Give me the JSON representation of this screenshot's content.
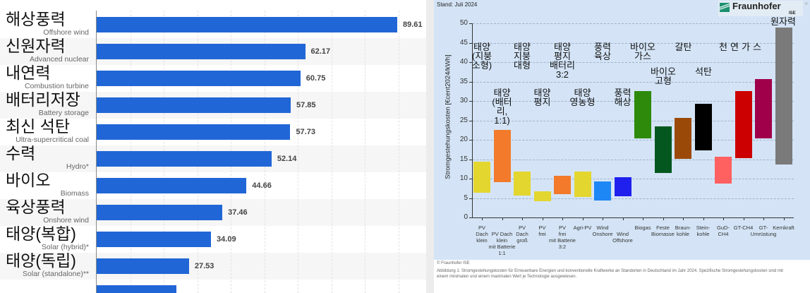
{
  "left_overlay_labels": [
    "해상풍력",
    "신원자력",
    "내연력",
    "배터리저장",
    "최신 석탄",
    "수력",
    "바이오",
    "육상풍력",
    "태양(복합)",
    "태양(독립)"
  ],
  "right_overlay_labels": [
    "태양\n(지붕\n소형)",
    "태양\n(배터\n리,\n1:1)",
    "태양\n지붕\n대형",
    "태양\n평지",
    "태양\n평지\n배터리\n3:2",
    "태양\n영농형",
    "풍력\n육상",
    "풍력\n해상",
    "바이오\n가스",
    "바이오\n고형",
    "갈탄",
    "석탄",
    "천",
    "연",
    "가",
    "스",
    "원자력"
  ],
  "right_header": {
    "stand": "Stand: Juli 2024",
    "logo": "Fraunhofer",
    "logo_sub": "ISE",
    "close": "×"
  },
  "right_footer": {
    "copyright": "© Fraunhofer ISE",
    "caption": "Abbildung 1: Stromgestehungskosten für Erneuerbare Energien und konventionelle Kraftwerke an Standorten in Deutschland im Jahr 2024. Spezifische Stromgestehungskosten sind mit einem minimalen und einem maximalen Wert je Technologie ausgewiesen."
  },
  "chart_data": [
    {
      "type": "bar",
      "orientation": "horizontal",
      "title": "",
      "xlabel": "",
      "ylabel": "",
      "xlim": [
        0,
        90
      ],
      "categories": [
        "Offshore wind",
        "Advanced nuclear",
        "Combustion turbine",
        "Battery storage",
        "Ultra-supercritical coal",
        "Hydro*",
        "Biomass",
        "Onshore wind",
        "Solar (hybrid)*",
        "Solar (standalone)**",
        ""
      ],
      "values": [
        89.61,
        62.17,
        60.75,
        57.85,
        57.73,
        52.14,
        44.66,
        37.46,
        34.09,
        27.53,
        23.8
      ],
      "labels": [
        "89.61",
        "62.17",
        "60.75",
        "57.85",
        "57.73",
        "52.14",
        "44.66",
        "37.46",
        "34.09",
        "27.53",
        ""
      ],
      "color": "#2166d6"
    },
    {
      "type": "bar",
      "subtype": "floating-range",
      "title": "",
      "ylabel": "Stromgestehungskosten [€cent2024/kWh]",
      "ylim": [
        0,
        50
      ],
      "yticks": [
        "0",
        "5",
        "10",
        "15",
        "20",
        "25",
        "30",
        "35",
        "40",
        "45",
        "50"
      ],
      "grid": true,
      "categories": [
        "PV\nDach\nklein",
        "PV Dach\nklein\nmit Batterie\n1:1",
        "PV\nDach\ngroß",
        "PV\nfrei",
        "PV\nfrei\nmit Batterie\n3:2",
        "Agri-PV",
        "Wind\nOnshore",
        "Wind\nOffshore",
        "Biogas",
        "Feste\nBiomasse",
        "Braun-\nkohle",
        "Stein-\nkohle",
        "GuD-\nCH4",
        "GT-CH4",
        "GT-\nUmrüstung",
        "Kernkraft"
      ],
      "min": [
        6.3,
        9.1,
        5.7,
        4.1,
        6.0,
        5.2,
        4.3,
        5.5,
        20.3,
        11.4,
        15.1,
        17.3,
        8.7,
        15.3,
        20.3,
        13.6
      ],
      "max": [
        14.4,
        22.5,
        11.9,
        6.8,
        10.8,
        11.8,
        9.2,
        10.3,
        32.5,
        23.4,
        25.7,
        29.3,
        15.6,
        32.6,
        35.6,
        49.0
      ],
      "colors": [
        "#e3d62f",
        "#f27a2a",
        "#e3d62f",
        "#e3d62f",
        "#f27a2a",
        "#e3d62f",
        "#1d87f5",
        "#2020ee",
        "#2d8a0a",
        "#04581f",
        "#9b4908",
        "#000000",
        "#ff6060",
        "#cc0000",
        "#a0004a",
        "#7a7a7a"
      ]
    }
  ]
}
